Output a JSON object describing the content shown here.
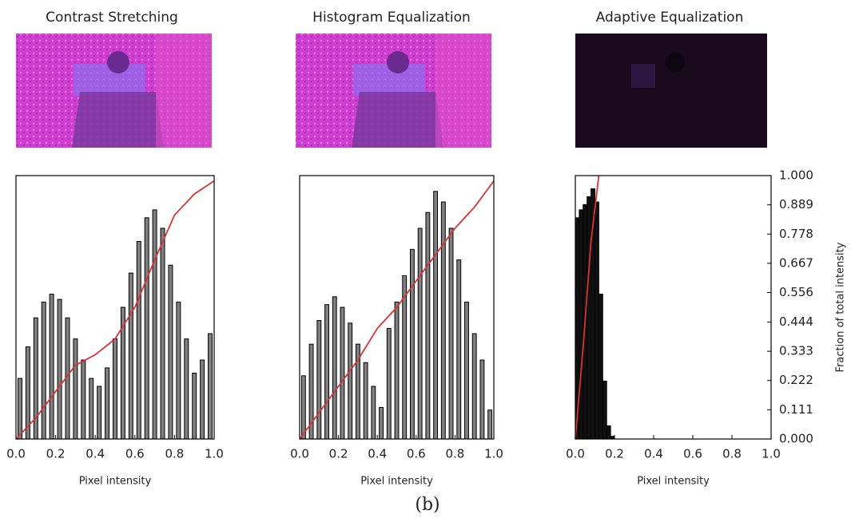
{
  "chart_data": [
    {
      "type": "histogram",
      "title": "Contrast Stretching",
      "xlabel": "Pixel intensity",
      "bins": [
        0,
        0.04,
        0.08,
        0.12,
        0.16,
        0.2,
        0.24,
        0.28,
        0.32,
        0.36,
        0.4,
        0.44,
        0.48,
        0.52,
        0.56,
        0.6,
        0.64,
        0.68,
        0.72,
        0.76,
        0.8,
        0.84,
        0.88,
        0.92,
        0.96,
        1.0
      ],
      "values": [
        0.23,
        0.35,
        0.46,
        0.52,
        0.55,
        0.53,
        0.46,
        0.38,
        0.3,
        0.23,
        0.2,
        0.27,
        0.38,
        0.5,
        0.63,
        0.75,
        0.84,
        0.87,
        0.8,
        0.66,
        0.52,
        0.38,
        0.25,
        0.3,
        0.4
      ],
      "color": "#808080",
      "line": {
        "color": "#e03030",
        "x": [
          0,
          0.1,
          0.2,
          0.3,
          0.4,
          0.5,
          0.6,
          0.7,
          0.8,
          0.9,
          1.0
        ],
        "y": [
          0,
          0.08,
          0.18,
          0.28,
          0.32,
          0.38,
          0.5,
          0.68,
          0.85,
          0.93,
          0.98
        ]
      },
      "xlim": [
        0,
        1
      ],
      "ylim": [
        0,
        1
      ],
      "xticks": [
        {
          "value": 0,
          "label": "0.0"
        },
        0.2,
        0.4,
        0.6,
        0.8,
        {
          "value": 1,
          "label": "1.0"
        }
      ]
    },
    {
      "type": "histogram",
      "title": "Histogram Equalization",
      "xlabel": "Pixel intensity",
      "bins": [
        0,
        0.04,
        0.08,
        0.12,
        0.16,
        0.2,
        0.24,
        0.28,
        0.32,
        0.36,
        0.4,
        0.44,
        0.48,
        0.52,
        0.56,
        0.6,
        0.64,
        0.68,
        0.72,
        0.76,
        0.8,
        0.84,
        0.88,
        0.92,
        0.96,
        1.0
      ],
      "values": [
        0.24,
        0.36,
        0.45,
        0.51,
        0.54,
        0.5,
        0.44,
        0.36,
        0.29,
        0.2,
        0.12,
        0.42,
        0.52,
        0.62,
        0.72,
        0.8,
        0.86,
        0.94,
        0.9,
        0.8,
        0.68,
        0.52,
        0.4,
        0.3,
        0.11
      ],
      "color": "#808080",
      "line": {
        "color": "#e03030",
        "x": [
          0,
          0.1,
          0.2,
          0.3,
          0.4,
          0.5,
          0.6,
          0.7,
          0.8,
          0.9,
          1.0
        ],
        "y": [
          0,
          0.1,
          0.2,
          0.3,
          0.42,
          0.5,
          0.6,
          0.7,
          0.8,
          0.88,
          0.98
        ]
      },
      "xlim": [
        0,
        1
      ],
      "ylim": [
        0,
        1
      ],
      "xticks": [
        {
          "value": 0,
          "label": "0.0"
        },
        0.2,
        0.4,
        0.6,
        0.8,
        {
          "value": 1,
          "label": "1.0"
        }
      ]
    },
    {
      "type": "histogram",
      "title": "Adaptive Equalization",
      "xlabel": "Pixel intensity",
      "y2label": "Fraction of total intensity",
      "bins": [
        0,
        0.02,
        0.04,
        0.06,
        0.08,
        0.1,
        0.12,
        0.14,
        0.16,
        0.18,
        0.2
      ],
      "values": [
        0.84,
        0.87,
        0.89,
        0.92,
        0.95,
        0.9,
        0.55,
        0.22,
        0.05,
        0.01
      ],
      "color": "#111111",
      "line": {
        "color": "#e03030",
        "x": [
          0,
          0.04,
          0.08,
          0.12
        ],
        "y": [
          0,
          0.35,
          0.75,
          1.0
        ]
      },
      "xlim": [
        0,
        1
      ],
      "ylim": [
        0,
        1
      ],
      "y2lim": [
        0,
        1
      ],
      "xticks": [
        {
          "value": 0,
          "label": "0.0"
        },
        0.2,
        0.4,
        0.6,
        0.8,
        {
          "value": 1,
          "label": "1.0"
        }
      ],
      "y2ticks": [
        {
          "value": 0,
          "label": "0.000"
        },
        0.111,
        0.222,
        0.333,
        0.444,
        0.556,
        0.667,
        0.778,
        0.889,
        {
          "value": 1,
          "label": "1.000"
        }
      ]
    }
  ],
  "caption": "(b)"
}
